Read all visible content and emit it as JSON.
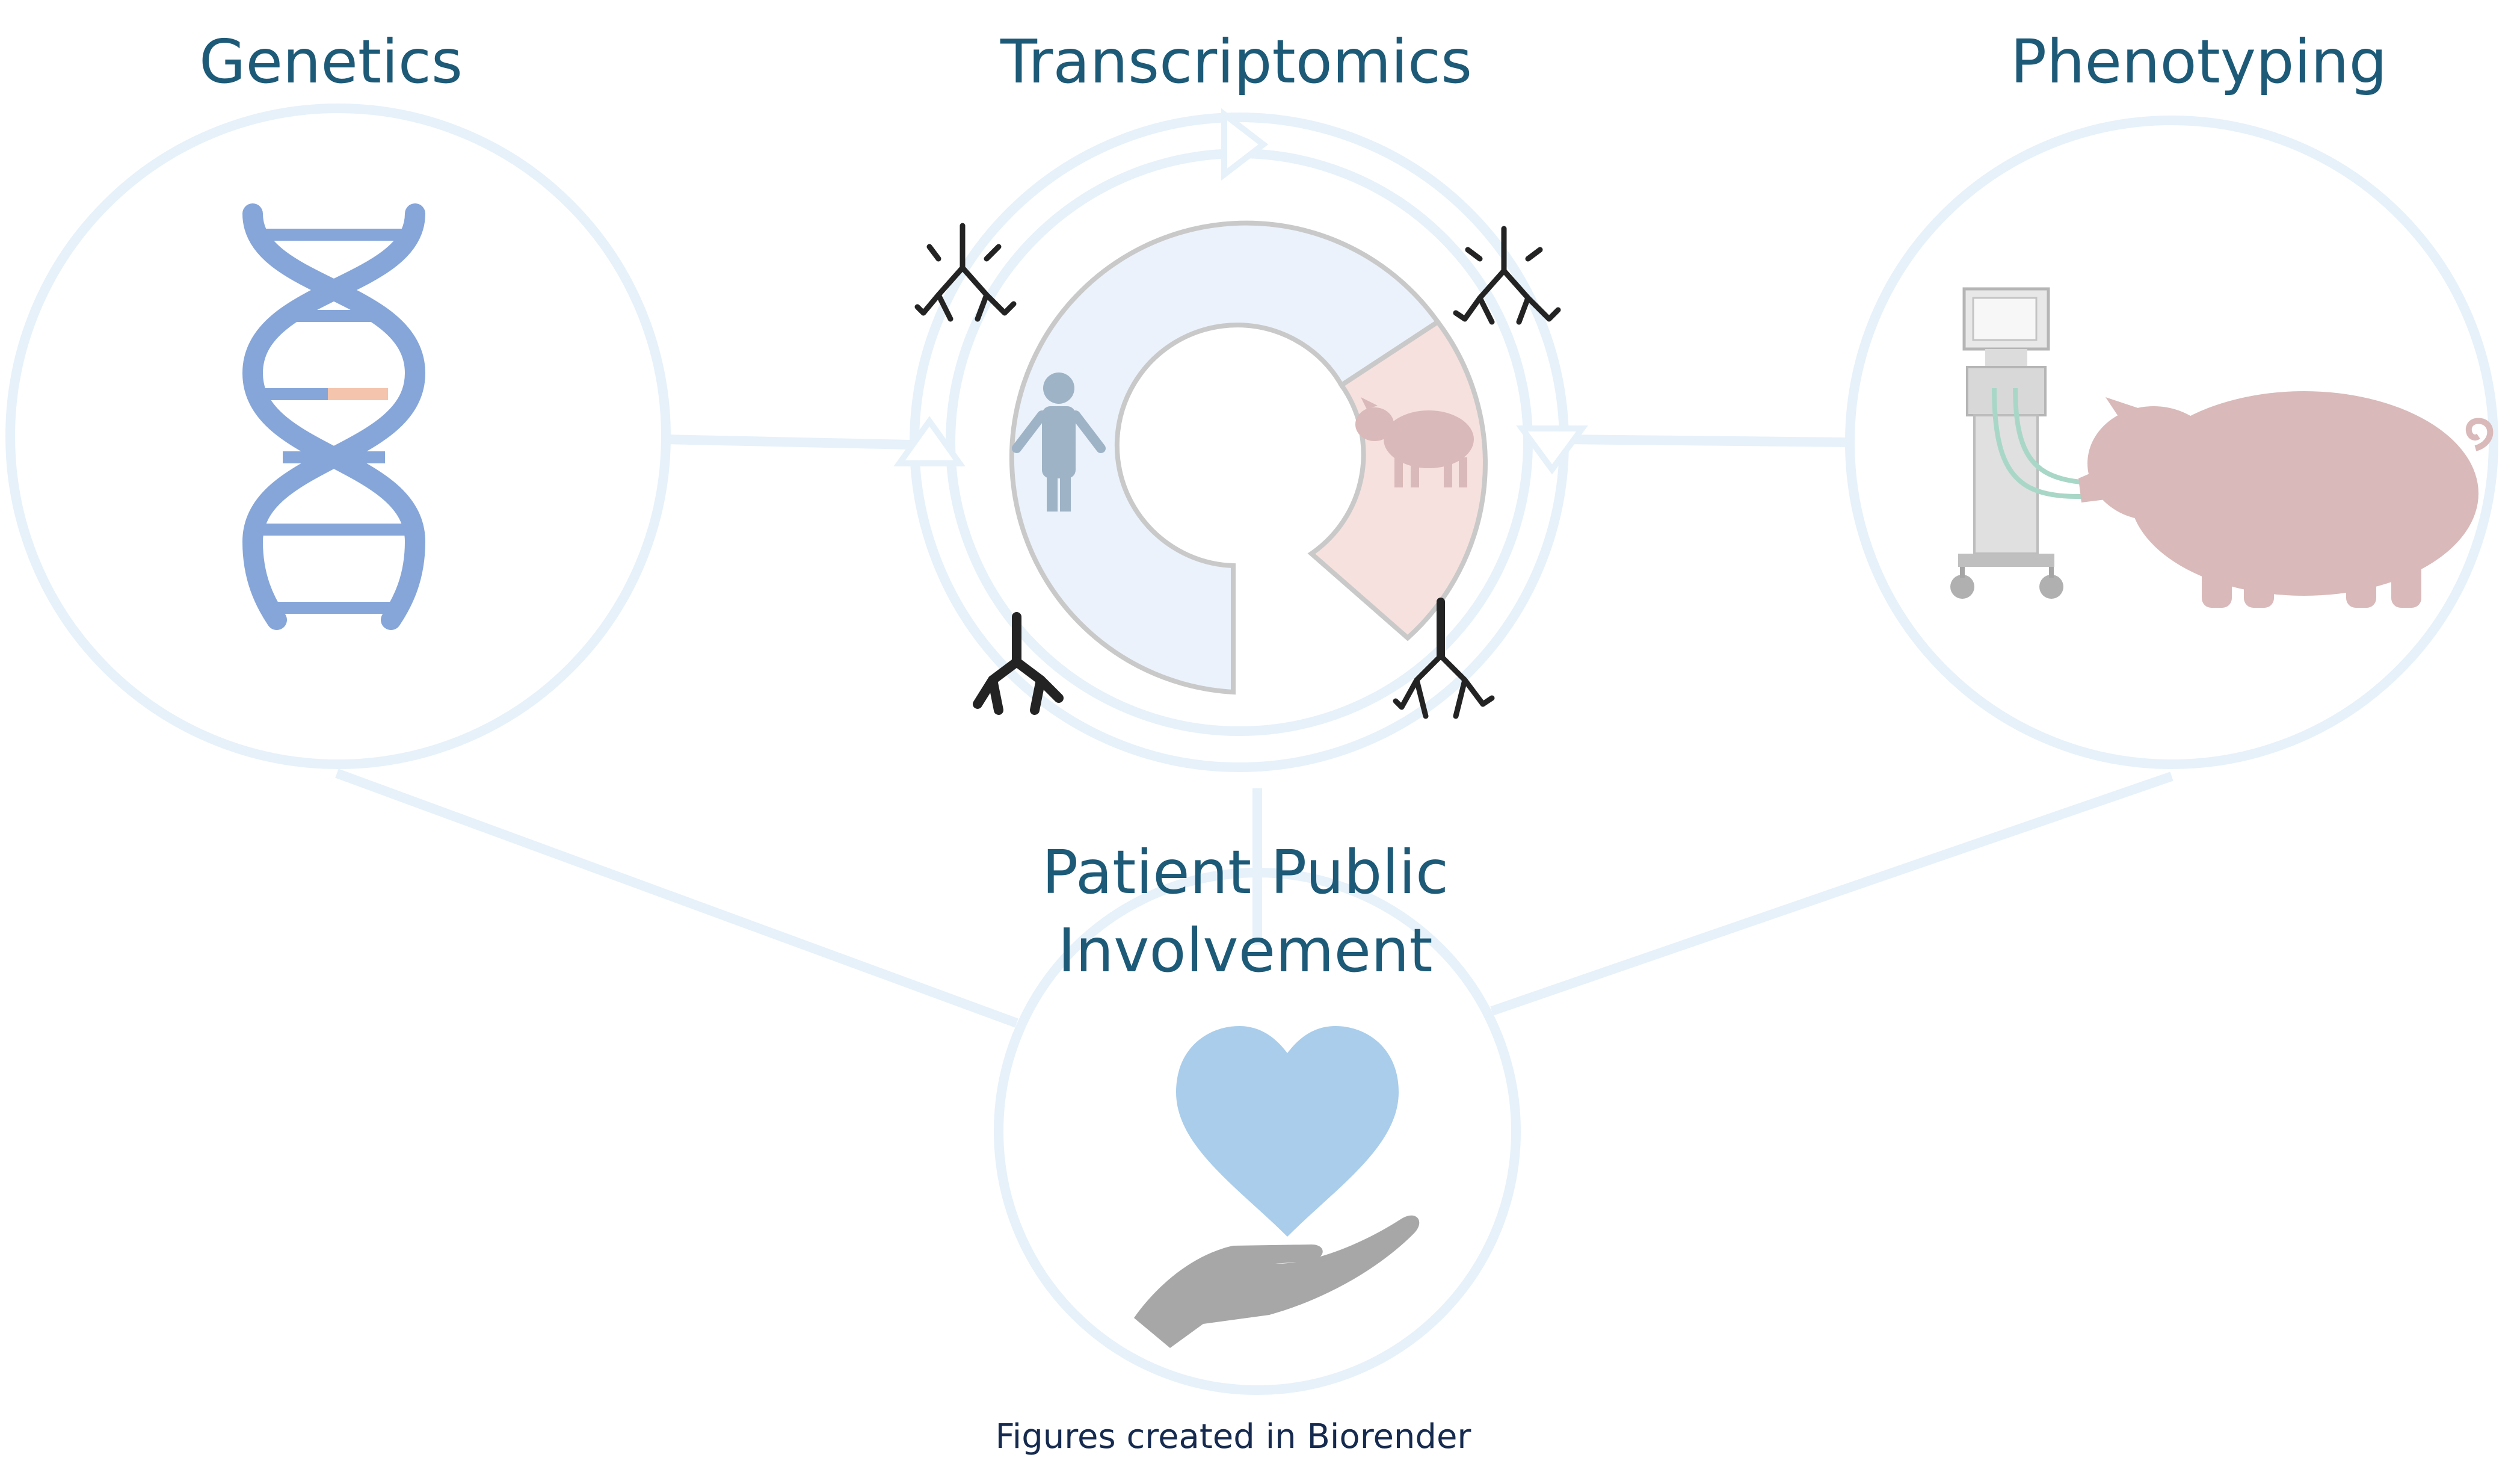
{
  "nodes": {
    "genetics": {
      "label": "Genetics",
      "icon": "dna-icon"
    },
    "transcriptomics": {
      "label": "Transcriptomics",
      "icon": "cycle-ring-icon"
    },
    "phenotyping": {
      "label": "Phenotyping",
      "icon": "pig-ventilator-icon"
    },
    "ppi": {
      "label_line1": "Patient Public",
      "label_line2": "Involvement",
      "icon": "heart-hand-icon"
    }
  },
  "footer": {
    "credit": "Figures created in Biorender"
  },
  "colors": {
    "label_text": "#1d5a78",
    "credit_text": "#152a4e",
    "circle_stroke": "#e6f1fa",
    "connector": "#e6f1fa",
    "dna_blue": "#86a6d9",
    "dna_accent": "#f4c4ad",
    "ring_human": "#ebf2fb",
    "ring_pig": "#f6e1de",
    "ring_stroke": "#c9c9c9",
    "human_figure": "#9fb3c6",
    "pig": "#d9b9b9",
    "heart": "#a9cdeb",
    "hand": "#a7a7a7",
    "lungs": "#232323"
  }
}
